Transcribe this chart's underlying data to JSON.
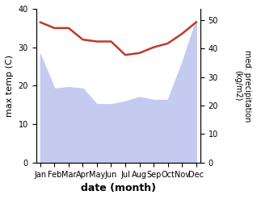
{
  "months": [
    "Jan",
    "Feb",
    "Mar",
    "Apr",
    "May",
    "Jun",
    "Jul",
    "Aug",
    "Sep",
    "Oct",
    "Nov",
    "Dec"
  ],
  "month_indices": [
    0,
    1,
    2,
    3,
    4,
    5,
    6,
    7,
    8,
    9,
    10,
    11
  ],
  "temperature": [
    36.5,
    35.0,
    35.0,
    32.0,
    31.5,
    31.5,
    28.0,
    28.5,
    30.0,
    31.0,
    33.5,
    36.5
  ],
  "precipitation": [
    38.0,
    26.0,
    26.5,
    26.0,
    20.5,
    20.5,
    21.5,
    23.0,
    22.0,
    22.0,
    35.0,
    50.0
  ],
  "temp_color": "#c0392b",
  "precip_fill_color": "#c5caf0",
  "xlabel": "date (month)",
  "ylabel_left": "max temp (C)",
  "ylabel_right": "med. precipitation\n(kg/m2)",
  "ylim_left": [
    0,
    40
  ],
  "ylim_right": [
    0,
    54
  ],
  "yticks_left": [
    0,
    10,
    20,
    30,
    40
  ],
  "yticks_right": [
    0,
    10,
    20,
    30,
    40,
    50
  ],
  "figsize": [
    3.18,
    2.47
  ],
  "dpi": 100
}
